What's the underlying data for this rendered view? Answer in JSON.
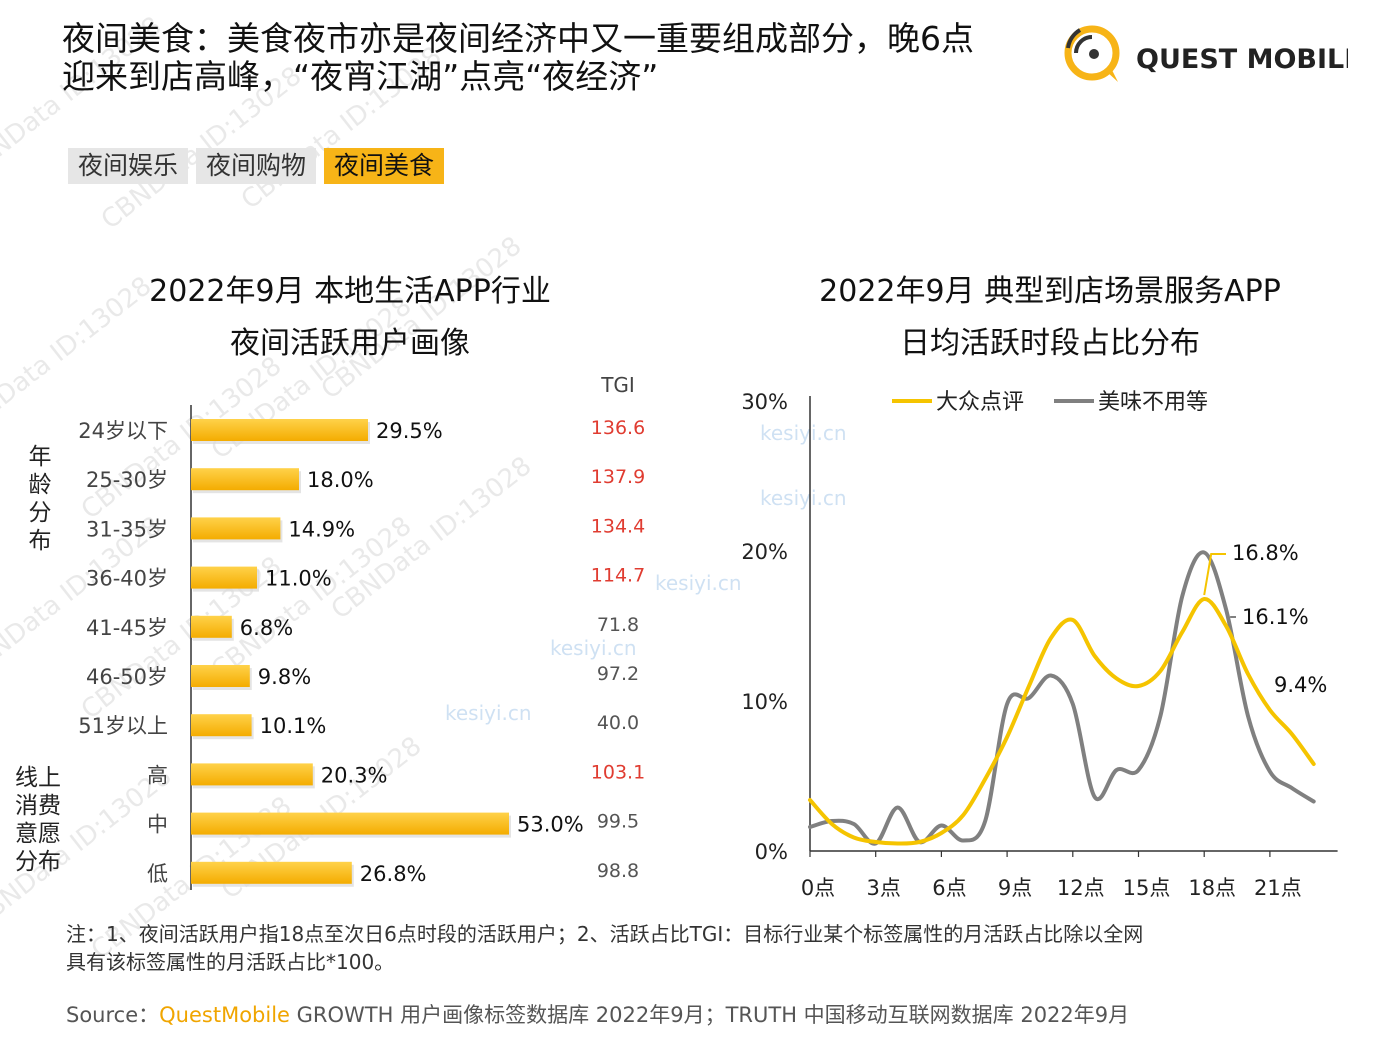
{
  "header": {
    "title_line1": "夜间美食：美食夜市亦是夜间经济中又一重要组成部分，晚6点",
    "title_line2": "迎来到店高峰，“夜宵江湖”点亮“夜经济”",
    "logo_text": "QUEST MOBILE"
  },
  "tabs": [
    {
      "label": "夜间娱乐",
      "active": false
    },
    {
      "label": "夜间购物",
      "active": false
    },
    {
      "label": "夜间美食",
      "active": true
    }
  ],
  "colors": {
    "accent": "#f7b417",
    "bar": "#f9bb14",
    "tgi_high": "#e03c31",
    "tgi_normal": "#555555",
    "series_dianping": "#f5c400",
    "series_meiwei": "#808080"
  },
  "watermark": {
    "text": "CBNData ID:13028",
    "site": "kesiyi.cn"
  },
  "chart_data": [
    {
      "type": "bar",
      "orientation": "horizontal",
      "title_line1": "2022年9月 本地生活APP行业",
      "title_line2": "夜间活跃用户画像",
      "tgi_header": "TGI",
      "groups": [
        {
          "name": "年龄分布",
          "categories": [
            "24岁以下",
            "25-30岁",
            "31-35岁",
            "36-40岁",
            "41-45岁",
            "46-50岁",
            "51岁以上"
          ]
        },
        {
          "name": "线上消费意愿分布",
          "categories": [
            "高",
            "中",
            "低"
          ]
        }
      ],
      "categories": [
        "24岁以下",
        "25-30岁",
        "31-35岁",
        "36-40岁",
        "41-45岁",
        "46-50岁",
        "51岁以上",
        "高",
        "中",
        "低"
      ],
      "values": [
        29.5,
        18.0,
        14.9,
        11.0,
        6.8,
        9.8,
        10.1,
        20.3,
        53.0,
        26.8
      ],
      "value_labels": [
        "29.5%",
        "18.0%",
        "14.9%",
        "11.0%",
        "6.8%",
        "9.8%",
        "10.1%",
        "20.3%",
        "53.0%",
        "26.8%"
      ],
      "tgi": [
        "136.6",
        "137.9",
        "134.4",
        "114.7",
        "71.8",
        "97.2",
        "40.0",
        "103.1",
        "99.5",
        "98.8"
      ],
      "tgi_highlight": [
        true,
        true,
        true,
        true,
        false,
        false,
        false,
        true,
        false,
        false
      ],
      "xlim": [
        0,
        60
      ]
    },
    {
      "type": "line",
      "title_line1": "2022年9月 典型到店场景服务APP",
      "title_line2": "日均活跃时段占比分布",
      "ylim": [
        0,
        30
      ],
      "y_ticks": [
        0,
        10,
        20,
        30
      ],
      "y_tick_labels": [
        "0%",
        "10%",
        "20%",
        "30%"
      ],
      "x_ticks": [
        0,
        3,
        6,
        9,
        12,
        15,
        18,
        21
      ],
      "x_tick_labels": [
        "0点",
        "3点",
        "6点",
        "9点",
        "12点",
        "15点",
        "18点",
        "21点"
      ],
      "xlim": [
        0,
        24
      ],
      "legend_position": "top",
      "series": [
        {
          "name": "大众点评",
          "x": [
            0,
            1,
            2,
            3,
            4,
            5,
            6,
            7,
            8,
            9,
            10,
            11,
            12,
            13,
            14,
            15,
            16,
            17,
            18,
            19,
            20,
            21,
            22,
            23
          ],
          "y": [
            3.4,
            1.8,
            0.9,
            0.6,
            0.5,
            0.6,
            1.2,
            2.4,
            4.8,
            7.6,
            11.0,
            14.2,
            15.4,
            13.0,
            11.5,
            11.0,
            12.0,
            14.6,
            16.8,
            15.0,
            11.8,
            9.4,
            7.8,
            5.8
          ],
          "point_labels": {
            "18": "16.8%",
            "21": "9.4%"
          }
        },
        {
          "name": "美味不用等",
          "x": [
            0,
            1,
            2,
            3,
            4,
            5,
            6,
            7,
            8,
            9,
            10,
            11,
            12,
            13,
            14,
            15,
            16,
            17,
            18,
            19,
            20,
            21,
            22,
            23
          ],
          "y": [
            1.6,
            2.0,
            1.8,
            0.5,
            2.9,
            0.6,
            1.7,
            0.7,
            2.0,
            9.8,
            10.2,
            11.7,
            9.8,
            3.6,
            5.4,
            5.4,
            9.0,
            17.0,
            19.9,
            16.1,
            9.0,
            5.3,
            4.2,
            3.3
          ],
          "point_labels": {
            "19": "16.1%"
          }
        }
      ]
    }
  ],
  "footer": {
    "note_line1": "注：1、夜间活跃用户指18点至次日6点时段的活跃用户；2、活跃占比TGI：目标行业某个标签属性的月活跃占比除以全网",
    "note_line2": "具有该标签属性的月活跃占比*100。",
    "source_prefix": "Source：",
    "source_brand": "QuestMobile",
    "source_rest": " GROWTH 用户画像标签数据库 2022年9月；TRUTH 中国移动互联网数据库 2022年9月"
  }
}
